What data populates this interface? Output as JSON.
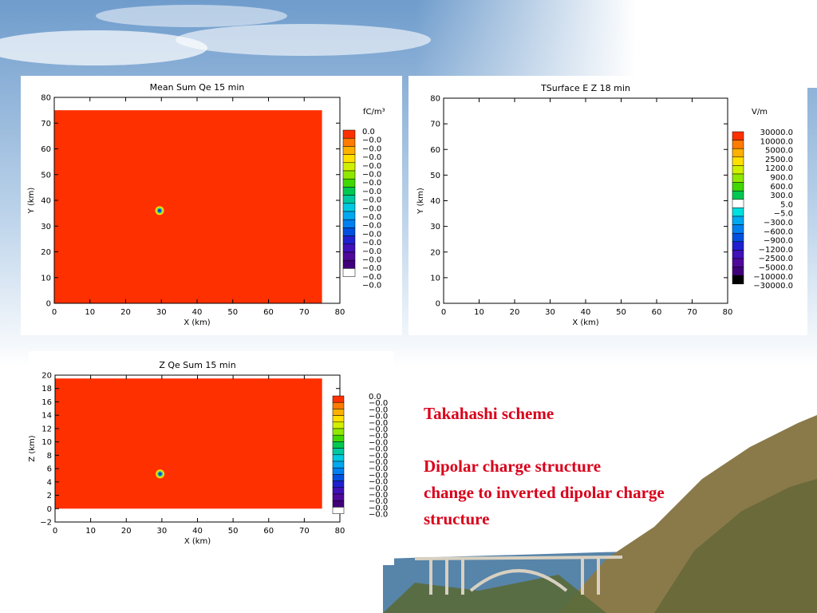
{
  "slide": {
    "text_lines": [
      "Takahashi scheme",
      "Dipolar charge structure",
      "change to inverted dipolar charge",
      "structure"
    ],
    "colors": {
      "text": "#d8001a",
      "sky_top": "#6f9ccc",
      "sea": "#3a6f9a",
      "hill": "#8a7a4a"
    }
  },
  "chart_data": [
    {
      "type": "heatmap",
      "title": "Mean Sum Qe    15 min",
      "xlabel": "X (km)",
      "ylabel": "Y (km)",
      "xlim": [
        0,
        80
      ],
      "ylim": [
        0,
        80
      ],
      "xticks": [
        0,
        10,
        20,
        30,
        40,
        50,
        60,
        70,
        80
      ],
      "yticks": [
        0,
        10,
        20,
        30,
        40,
        50,
        60,
        70,
        80
      ],
      "field_extent": {
        "x": [
          0,
          75
        ],
        "y": [
          0,
          75
        ]
      },
      "field_color": "#ff3000",
      "features": [
        {
          "x": 29.5,
          "y": 36,
          "kind": "dipole-core"
        }
      ],
      "colorbar": {
        "unit": "fC/m³",
        "labels": [
          "0.0",
          "−0.0",
          "−0.0",
          "−0.0",
          "−0.0",
          "−0.0",
          "−0.0",
          "−0.0",
          "−0.0",
          "−0.0",
          "−0.0",
          "−0.0",
          "−0.0",
          "−0.0",
          "−0.0",
          "−0.0",
          "−0.0",
          "−0.0",
          "−0.0"
        ],
        "colors": [
          "#ff3000",
          "#ff7a00",
          "#ffb000",
          "#ffe000",
          "#d0f000",
          "#90e800",
          "#40d800",
          "#00c850",
          "#00c8a0",
          "#00c8e0",
          "#00a8f0",
          "#0080f0",
          "#0050e0",
          "#2020d0",
          "#4010b8",
          "#50089a",
          "#40007a",
          "#ffffff"
        ]
      }
    },
    {
      "type": "heatmap",
      "title": "TSurface E Z    18 min",
      "xlabel": "X (km)",
      "ylabel": "Y (km)",
      "xlim": [
        0,
        80
      ],
      "ylim": [
        0,
        80
      ],
      "xticks": [
        0,
        10,
        20,
        30,
        40,
        50,
        60,
        70,
        80
      ],
      "yticks": [
        0,
        10,
        20,
        30,
        40,
        50,
        60,
        70,
        80
      ],
      "field_extent": null,
      "features": [],
      "colorbar": {
        "unit": "V/m",
        "labels": [
          "30000.0",
          "10000.0",
          "5000.0",
          "2500.0",
          "1200.0",
          "900.0",
          "600.0",
          "300.0",
          "5.0",
          "−5.0",
          "−300.0",
          "−600.0",
          "−900.0",
          "−1200.0",
          "−2500.0",
          "−5000.0",
          "−10000.0",
          "−30000.0"
        ],
        "colors": [
          "#ff3000",
          "#ff7a00",
          "#ffb000",
          "#ffe000",
          "#d0f000",
          "#90e800",
          "#40d800",
          "#00c850",
          "#ffffff",
          "#00e0e0",
          "#00a8f0",
          "#0080f0",
          "#0050e0",
          "#2020d0",
          "#4010b8",
          "#50089a",
          "#40007a",
          "#000000"
        ]
      }
    },
    {
      "type": "heatmap",
      "title": "Z Qe Sum    15 min",
      "xlabel": "X (km)",
      "ylabel": "Z (km)",
      "xlim": [
        0,
        80
      ],
      "ylim": [
        -2,
        20
      ],
      "xticks": [
        0,
        10,
        20,
        30,
        40,
        50,
        60,
        70,
        80
      ],
      "yticks": [
        -2,
        0,
        2,
        4,
        6,
        8,
        10,
        12,
        14,
        16,
        18,
        20
      ],
      "field_extent": {
        "x": [
          0,
          75
        ],
        "y": [
          0,
          19.5
        ]
      },
      "field_color": "#ff3000",
      "features": [
        {
          "x": 29.5,
          "y": 5.2,
          "kind": "dipole-core"
        }
      ],
      "colorbar": {
        "unit": "",
        "labels": [
          "0.0",
          "−0.0",
          "−0.0",
          "−0.0",
          "−0.0",
          "−0.0",
          "−0.0",
          "−0.0",
          "−0.0",
          "−0.0",
          "−0.0",
          "−0.0",
          "−0.0",
          "−0.0",
          "−0.0",
          "−0.0",
          "−0.0",
          "−0.0",
          "−0.0"
        ],
        "colors": [
          "#ff3000",
          "#ff7a00",
          "#ffb000",
          "#ffe000",
          "#d0f000",
          "#90e800",
          "#40d800",
          "#00c850",
          "#00c8a0",
          "#00c8e0",
          "#00a8f0",
          "#0080f0",
          "#0050e0",
          "#2020d0",
          "#4010b8",
          "#50089a",
          "#40007a",
          "#ffffff"
        ]
      }
    }
  ]
}
